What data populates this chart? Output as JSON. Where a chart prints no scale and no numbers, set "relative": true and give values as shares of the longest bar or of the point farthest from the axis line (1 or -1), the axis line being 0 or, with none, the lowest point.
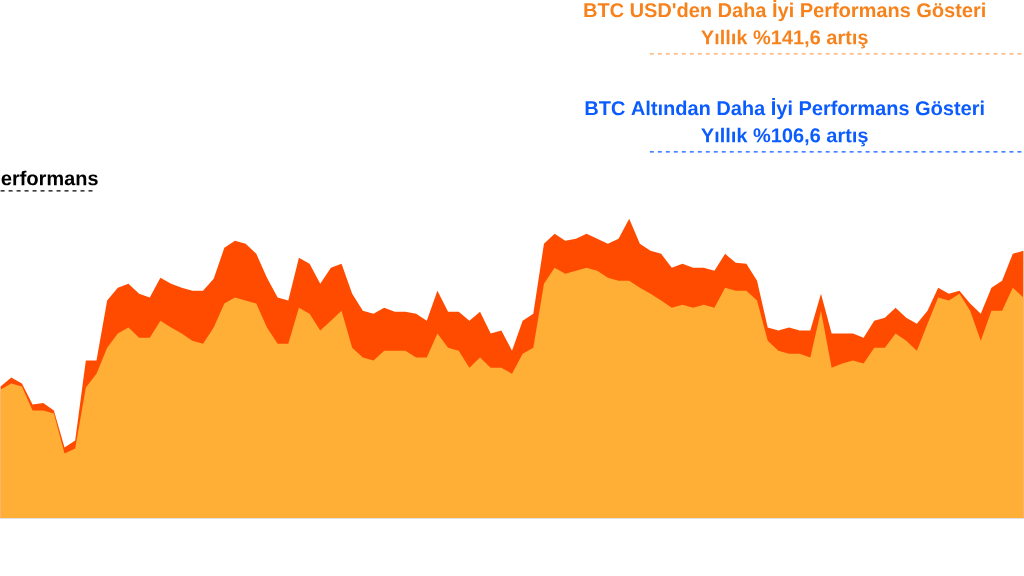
{
  "chart_data": {
    "type": "area",
    "relative": true,
    "categories": [
      null,
      null,
      null,
      null,
      null,
      null,
      null,
      null,
      null,
      null,
      null,
      null,
      null,
      null,
      null,
      null,
      null,
      null,
      null,
      null,
      null,
      null,
      null,
      null,
      null,
      null,
      null,
      null,
      null,
      null,
      null,
      null,
      null,
      null,
      null,
      null,
      null,
      null,
      null,
      null,
      null,
      null,
      null,
      null,
      null,
      null,
      null,
      null,
      null,
      null,
      null,
      null,
      null,
      null,
      null,
      null,
      null,
      null,
      null,
      null,
      null,
      null,
      null,
      null,
      null,
      null,
      null,
      null,
      null,
      null,
      null,
      null,
      null,
      null,
      null,
      null,
      null,
      null,
      null,
      null,
      null,
      null,
      null,
      null,
      null,
      null,
      null,
      null,
      null,
      null,
      null,
      null,
      null,
      null,
      null,
      null,
      null
    ],
    "series": [
      {
        "color": "#ff4b00",
        "values": [
          0.44,
          0.47,
          0.45,
          0.38,
          0.385,
          0.36,
          0.237,
          0.26,
          0.527,
          0.527,
          0.727,
          0.77,
          0.783,
          0.75,
          0.737,
          0.803,
          0.783,
          0.77,
          0.76,
          0.76,
          0.8,
          0.903,
          0.927,
          0.917,
          0.883,
          0.803,
          0.737,
          0.727,
          0.87,
          0.85,
          0.783,
          0.837,
          0.85,
          0.75,
          0.693,
          0.683,
          0.703,
          0.69,
          0.69,
          0.683,
          0.66,
          0.76,
          0.69,
          0.69,
          0.66,
          0.69,
          0.617,
          0.627,
          0.56,
          0.66,
          0.683,
          0.917,
          0.95,
          0.927,
          0.933,
          0.95,
          0.933,
          0.917,
          0.933,
          1.0,
          0.917,
          0.893,
          0.883,
          0.837,
          0.85,
          0.837,
          0.837,
          0.827,
          0.883,
          0.853,
          0.85,
          0.793,
          0.637,
          0.627,
          0.637,
          0.627,
          0.627,
          0.75,
          0.617,
          0.617,
          0.617,
          0.603,
          0.66,
          0.67,
          0.703,
          0.67,
          0.65,
          0.693,
          0.77,
          0.75,
          0.76,
          0.717,
          0.683,
          0.77,
          0.793,
          0.883,
          0.893
        ]
      },
      {
        "color": "#ffae36",
        "values": [
          0.43,
          0.45,
          0.44,
          0.36,
          0.36,
          0.35,
          0.217,
          0.233,
          0.437,
          0.483,
          0.57,
          0.617,
          0.637,
          0.603,
          0.603,
          0.66,
          0.637,
          0.617,
          0.593,
          0.583,
          0.637,
          0.717,
          0.737,
          0.727,
          0.717,
          0.637,
          0.583,
          0.583,
          0.703,
          0.683,
          0.627,
          0.66,
          0.693,
          0.57,
          0.537,
          0.527,
          0.56,
          0.56,
          0.56,
          0.537,
          0.537,
          0.617,
          0.57,
          0.56,
          0.503,
          0.537,
          0.503,
          0.503,
          0.483,
          0.55,
          0.57,
          0.783,
          0.837,
          0.817,
          0.827,
          0.837,
          0.827,
          0.803,
          0.793,
          0.793,
          0.77,
          0.75,
          0.727,
          0.703,
          0.713,
          0.703,
          0.713,
          0.703,
          0.77,
          0.76,
          0.76,
          0.727,
          0.593,
          0.56,
          0.55,
          0.55,
          0.537,
          0.693,
          0.503,
          0.517,
          0.527,
          0.517,
          0.57,
          0.57,
          0.617,
          0.593,
          0.56,
          0.65,
          0.737,
          0.727,
          0.75,
          0.693,
          0.593,
          0.693,
          0.693,
          0.77,
          0.737
        ]
      }
    ],
    "ref_lines": [
      {
        "axis": "y",
        "value": 1.55,
        "label": "Yıllık %141,6 artış",
        "color": "#f7821b",
        "line_style": "dashed"
      },
      {
        "axis": "y",
        "value": 1.223,
        "label": "Yıllık %106,6 artış",
        "color": "#0b5cff",
        "line_style": "dashed"
      },
      {
        "axis": "y",
        "value": 1.093,
        "label": "erformans",
        "color": "#000000",
        "line_style": "dashed"
      }
    ],
    "annotations": [
      "BTC USD'den Daha İyi Performans Gösteri",
      "BTC Altından Daha İyi Performans Gösteri"
    ]
  }
}
